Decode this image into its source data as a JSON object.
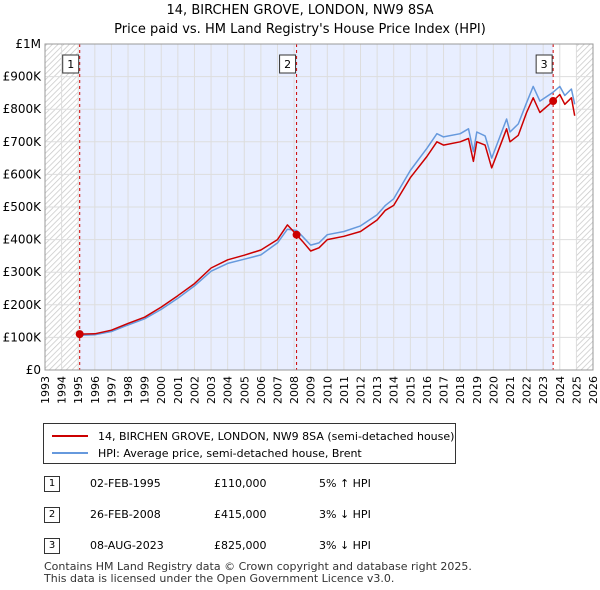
{
  "title_line1": "14, BIRCHEN GROVE, LONDON, NW9 8SA",
  "title_line2": "Price paid vs. HM Land Registry's House Price Index (HPI)",
  "colors": {
    "property_line": "#cc0000",
    "hpi_line": "#6699dd",
    "ownership_shade": "#e8eeff",
    "hatch": "#c8c8c8",
    "grid": "#dddddd",
    "marker": "#cc0000"
  },
  "chart_data": {
    "type": "line",
    "x_range": [
      1993,
      2026
    ],
    "y_range": [
      0,
      1000000
    ],
    "x_ticks": [
      "1993",
      "1994",
      "1995",
      "1996",
      "1997",
      "1998",
      "1999",
      "2000",
      "2001",
      "2002",
      "2003",
      "2004",
      "2005",
      "2006",
      "2007",
      "2008",
      "2009",
      "2010",
      "2011",
      "2012",
      "2013",
      "2014",
      "2015",
      "2016",
      "2017",
      "2018",
      "2019",
      "2020",
      "2021",
      "2022",
      "2023",
      "2024",
      "2025",
      "2026"
    ],
    "y_ticks": [
      {
        "value": 0,
        "label": "£0"
      },
      {
        "value": 100000,
        "label": "£100K"
      },
      {
        "value": 200000,
        "label": "£200K"
      },
      {
        "value": 300000,
        "label": "£300K"
      },
      {
        "value": 400000,
        "label": "£400K"
      },
      {
        "value": 500000,
        "label": "£500K"
      },
      {
        "value": 600000,
        "label": "£600K"
      },
      {
        "value": 700000,
        "label": "£700K"
      },
      {
        "value": 800000,
        "label": "£800K"
      },
      {
        "value": 900000,
        "label": "£900K"
      },
      {
        "value": 1000000,
        "label": "£1M"
      }
    ],
    "hatched_before": 1995.0,
    "hatched_after": 2025.0,
    "ownership_period": [
      1995.09,
      2023.6
    ],
    "series": [
      {
        "name": "14, BIRCHEN GROVE, LONDON, NW9 8SA (semi-detached house)",
        "color": "#cc0000",
        "points": [
          [
            1995.09,
            110000
          ],
          [
            1996,
            111000
          ],
          [
            1997,
            122000
          ],
          [
            1998,
            143000
          ],
          [
            1999,
            162000
          ],
          [
            2000,
            193000
          ],
          [
            2001,
            228000
          ],
          [
            2002,
            265000
          ],
          [
            2003,
            313000
          ],
          [
            2004,
            338000
          ],
          [
            2005,
            352000
          ],
          [
            2006,
            368000
          ],
          [
            2007,
            400000
          ],
          [
            2007.6,
            445000
          ],
          [
            2008.15,
            415000
          ],
          [
            2008.5,
            395000
          ],
          [
            2009,
            365000
          ],
          [
            2009.5,
            375000
          ],
          [
            2010,
            400000
          ],
          [
            2011,
            410000
          ],
          [
            2012,
            425000
          ],
          [
            2013,
            460000
          ],
          [
            2013.5,
            490000
          ],
          [
            2014,
            505000
          ],
          [
            2015,
            590000
          ],
          [
            2016,
            655000
          ],
          [
            2016.6,
            700000
          ],
          [
            2017,
            690000
          ],
          [
            2018,
            700000
          ],
          [
            2018.5,
            710000
          ],
          [
            2018.8,
            640000
          ],
          [
            2019,
            700000
          ],
          [
            2019.5,
            690000
          ],
          [
            2019.9,
            620000
          ],
          [
            2020.2,
            660000
          ],
          [
            2020.8,
            740000
          ],
          [
            2021,
            700000
          ],
          [
            2021.5,
            720000
          ],
          [
            2022,
            790000
          ],
          [
            2022.4,
            835000
          ],
          [
            2022.8,
            790000
          ],
          [
            2023.6,
            825000
          ],
          [
            2024,
            845000
          ],
          [
            2024.3,
            815000
          ],
          [
            2024.7,
            835000
          ],
          [
            2024.9,
            780000
          ]
        ]
      },
      {
        "name": "HPI: Average price, semi-detached house, Brent",
        "color": "#6699dd",
        "points": [
          [
            1995,
            106000
          ],
          [
            1996,
            108000
          ],
          [
            1997,
            118000
          ],
          [
            1998,
            138000
          ],
          [
            1999,
            157000
          ],
          [
            2000,
            186000
          ],
          [
            2001,
            220000
          ],
          [
            2002,
            258000
          ],
          [
            2003,
            303000
          ],
          [
            2004,
            327000
          ],
          [
            2005,
            340000
          ],
          [
            2006,
            353000
          ],
          [
            2007,
            390000
          ],
          [
            2007.6,
            432000
          ],
          [
            2008.15,
            428000
          ],
          [
            2008.5,
            410000
          ],
          [
            2009,
            383000
          ],
          [
            2009.5,
            390000
          ],
          [
            2010,
            415000
          ],
          [
            2011,
            425000
          ],
          [
            2012,
            442000
          ],
          [
            2013,
            476000
          ],
          [
            2013.5,
            505000
          ],
          [
            2014,
            525000
          ],
          [
            2015,
            612000
          ],
          [
            2016,
            680000
          ],
          [
            2016.6,
            725000
          ],
          [
            2017,
            715000
          ],
          [
            2018,
            725000
          ],
          [
            2018.5,
            740000
          ],
          [
            2018.8,
            670000
          ],
          [
            2019,
            730000
          ],
          [
            2019.5,
            718000
          ],
          [
            2019.9,
            650000
          ],
          [
            2020.2,
            690000
          ],
          [
            2020.8,
            770000
          ],
          [
            2021,
            730000
          ],
          [
            2021.5,
            755000
          ],
          [
            2022,
            820000
          ],
          [
            2022.4,
            870000
          ],
          [
            2022.8,
            825000
          ],
          [
            2023.6,
            852000
          ],
          [
            2024,
            870000
          ],
          [
            2024.3,
            842000
          ],
          [
            2024.7,
            862000
          ],
          [
            2024.9,
            815000
          ]
        ]
      }
    ],
    "markers": [
      {
        "label": "1",
        "x": 1995.09,
        "y": 110000
      },
      {
        "label": "2",
        "x": 2008.15,
        "y": 415000
      },
      {
        "label": "3",
        "x": 2023.6,
        "y": 825000
      }
    ]
  },
  "legend": {
    "property_label": "14, BIRCHEN GROVE, LONDON, NW9 8SA (semi-detached house)",
    "hpi_label": "HPI: Average price, semi-detached house, Brent"
  },
  "sales": [
    {
      "num": "1",
      "date": "02-FEB-1995",
      "price": "£110,000",
      "hpi": "5% ↑ HPI"
    },
    {
      "num": "2",
      "date": "26-FEB-2008",
      "price": "£415,000",
      "hpi": "3% ↓ HPI"
    },
    {
      "num": "3",
      "date": "08-AUG-2023",
      "price": "£825,000",
      "hpi": "3% ↓ HPI"
    }
  ],
  "footer": {
    "line1": "Contains HM Land Registry data © Crown copyright and database right 2025.",
    "line2": "This data is licensed under the Open Government Licence v3.0."
  }
}
